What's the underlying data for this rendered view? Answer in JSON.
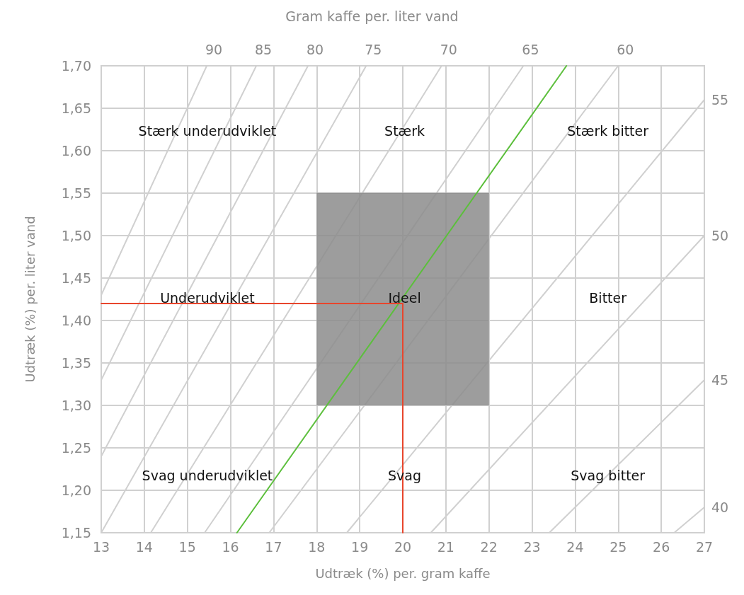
{
  "chart_data": {
    "type": "line",
    "title": "Gram kaffe per. liter vand",
    "xlabel": "Udtræk (%) per. gram kaffe",
    "ylabel": "Udtræk (%) per. liter vand",
    "xlim": [
      13,
      27
    ],
    "xticks": [
      13,
      14,
      15,
      16,
      17,
      18,
      19,
      20,
      21,
      22,
      23,
      24,
      25,
      26,
      27
    ],
    "ylim": [
      1.15,
      1.7
    ],
    "yticks": [
      {
        "value": 1.15,
        "label": "1,15"
      },
      {
        "value": 1.2,
        "label": "1,20"
      },
      {
        "value": 1.25,
        "label": "1,25"
      },
      {
        "value": 1.3,
        "label": "1,30"
      },
      {
        "value": 1.35,
        "label": "1,35"
      },
      {
        "value": 1.4,
        "label": "1,40"
      },
      {
        "value": 1.45,
        "label": "1,45"
      },
      {
        "value": 1.5,
        "label": "1,50"
      },
      {
        "value": 1.55,
        "label": "1,55"
      },
      {
        "value": 1.6,
        "label": "1,60"
      },
      {
        "value": 1.65,
        "label": "1,65"
      },
      {
        "value": 1.7,
        "label": "1,70"
      }
    ],
    "grid": true,
    "marker": "none",
    "line_style": "solid",
    "series": [
      {
        "type": "line",
        "color": "#8c8c8c",
        "x": [
          18,
          22
        ],
        "values": [
          1.55,
          1.55
        ],
        "lower": [
          1.3,
          1.3
        ],
        "upper": [
          1.55,
          1.55
        ]
      },
      {
        "name": "90",
        "color": "#d0d0d0",
        "x": [
          13,
          15.45
        ],
        "values": [
          1.43,
          1.7
        ]
      },
      {
        "name": "85",
        "color": "#d0d0d0",
        "x": [
          13,
          16.6
        ],
        "values": [
          1.33,
          1.7
        ]
      },
      {
        "name": "80",
        "color": "#d0d0d0",
        "x": [
          13,
          17.8
        ],
        "values": [
          1.24,
          1.7
        ]
      },
      {
        "name": "75",
        "color": "#d0d0d0",
        "x": [
          13,
          19.15
        ],
        "values": [
          1.15,
          1.7
        ]
      },
      {
        "name": "70",
        "color": "#d0d0d0",
        "x": [
          14.15,
          20.9
        ],
        "values": [
          1.15,
          1.7
        ]
      },
      {
        "name": "65",
        "color": "#d0d0d0",
        "x": [
          15.4,
          22.8
        ],
        "values": [
          1.15,
          1.7
        ]
      },
      {
        "name": "60",
        "color": "#d0d0d0",
        "x": [
          16.9,
          25
        ],
        "values": [
          1.15,
          1.7
        ]
      },
      {
        "name": "55",
        "color": "#d0d0d0",
        "x": [
          18.7,
          27
        ],
        "values": [
          1.15,
          1.66
        ]
      },
      {
        "name": "50",
        "color": "#d0d0d0",
        "x": [
          20.65,
          27
        ],
        "values": [
          1.15,
          1.5
        ]
      },
      {
        "name": "45",
        "color": "#d0d0d0",
        "x": [
          23.4,
          27
        ],
        "values": [
          1.15,
          1.33
        ]
      },
      {
        "name": "40",
        "color": "#d0d0d0",
        "x": [
          26.3,
          27
        ],
        "values": [
          1.15,
          1.18
        ]
      },
      {
        "color": "#5cbf3c",
        "x": [
          16.15,
          23.8
        ],
        "values": [
          1.15,
          1.7
        ]
      },
      {
        "color": "#e8452c",
        "x": [
          13,
          20,
          20
        ],
        "values": [
          1.42,
          1.42,
          1.15
        ]
      }
    ],
    "annotations": [
      "Stærk underudviklet",
      "Stærk",
      "Stærk bitter",
      "Underudviklet",
      "Ideel",
      "Bitter",
      "Svag underudviklet",
      "Svag",
      "Svag bitter"
    ]
  }
}
